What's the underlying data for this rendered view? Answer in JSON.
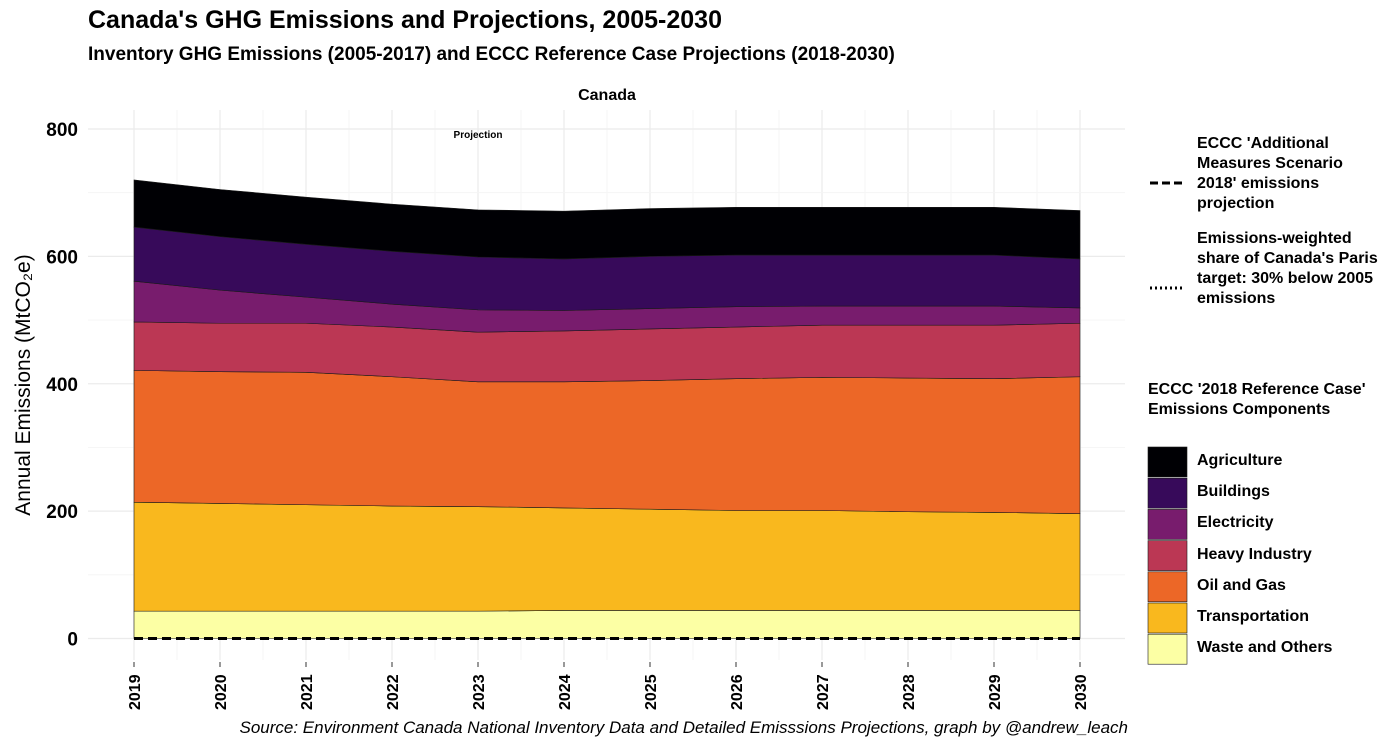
{
  "title": "Canada's GHG Emissions and Projections, 2005-2030",
  "subtitle": "Inventory GHG Emissions (2005-2017) and ECCC Reference Case Projections (2018-2030)",
  "caption": "Source: Environment Canada National Inventory Data and Detailed Emisssions Projections, graph by @andrew_leach",
  "chart_data": {
    "type": "area",
    "stacked": true,
    "facet_label": "Canada",
    "annotation": "Projection",
    "ylabel": "Annual Emissions  (MtCO₂e)",
    "xlabel": "",
    "ylim": [
      0,
      830
    ],
    "x": [
      2019,
      2020,
      2021,
      2022,
      2023,
      2024,
      2025,
      2026,
      2027,
      2028,
      2029,
      2030
    ],
    "x_ticks": [
      "2019",
      "2020",
      "2021",
      "2022",
      "2023",
      "2024",
      "2025",
      "2026",
      "2027",
      "2028",
      "2029",
      "2030"
    ],
    "y_ticks": [
      0,
      200,
      400,
      600,
      800
    ],
    "y_tick_labels": [
      "0",
      "200",
      "400",
      "600",
      "800"
    ],
    "grid": true,
    "fill_legend_title": "ECCC '2018 Reference Case' Emissions Components",
    "series": [
      {
        "name": "Waste and Others",
        "color": "#fcffa4",
        "values": [
          43,
          43,
          43,
          43,
          43,
          44,
          44,
          44,
          44,
          44,
          44,
          44
        ]
      },
      {
        "name": "Transportation",
        "color": "#f9b81e",
        "values": [
          171,
          169,
          167,
          165,
          164,
          161,
          159,
          157,
          157,
          155,
          154,
          152
        ]
      },
      {
        "name": "Oil and Gas",
        "color": "#ec6727",
        "values": [
          207,
          207,
          208,
          203,
          196,
          198,
          202,
          207,
          209,
          210,
          210,
          215
        ]
      },
      {
        "name": "Heavy Industry",
        "color": "#bb3754",
        "values": [
          76,
          76,
          77,
          78,
          78,
          80,
          81,
          81,
          82,
          83,
          84,
          84
        ]
      },
      {
        "name": "Electricity",
        "color": "#781c6d",
        "values": [
          64,
          52,
          41,
          36,
          35,
          32,
          32,
          32,
          30,
          30,
          30,
          24
        ]
      },
      {
        "name": "Buildings",
        "color": "#370a5a",
        "values": [
          85,
          84,
          83,
          83,
          83,
          81,
          82,
          81,
          80,
          80,
          80,
          77
        ]
      },
      {
        "name": "Agriculture",
        "color": "#000004",
        "values": [
          74,
          74,
          74,
          74,
          74,
          75,
          75,
          75,
          75,
          75,
          75,
          76
        ]
      }
    ],
    "line_legend": [
      {
        "label": "ECCC 'Additional Measures Scenario 2018' emissions projection",
        "style": "dashed"
      },
      {
        "label": "Emissions-weighted share of Canada's Paris target: 30% below 2005 emissions",
        "style": "dotted"
      }
    ],
    "reference_lines": [
      {
        "style": "dashed",
        "value": 0
      }
    ],
    "legend_order": [
      "Agriculture",
      "Buildings",
      "Electricity",
      "Heavy Industry",
      "Oil and Gas",
      "Transportation",
      "Waste and Others"
    ]
  }
}
